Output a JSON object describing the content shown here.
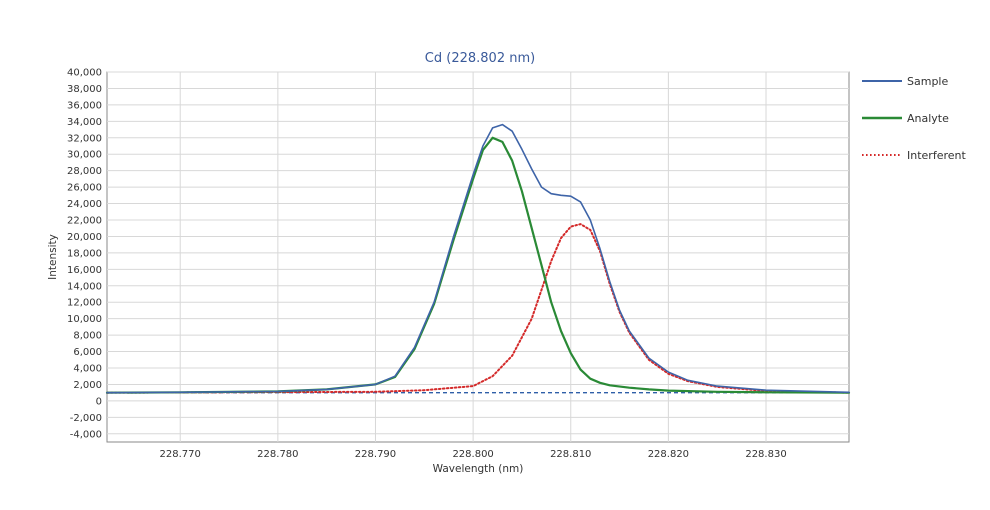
{
  "chart_data": {
    "type": "line",
    "title": "Cd (228.802 nm)",
    "xlabel": "Wavelength (nm)",
    "ylabel": "Intensity",
    "xlim": [
      228.7625,
      228.8385
    ],
    "ylim": [
      -5000,
      40000
    ],
    "x_ticks": [
      228.77,
      228.78,
      228.79,
      228.8,
      228.81,
      228.82,
      228.83
    ],
    "x_tick_labels": [
      "228.770",
      "228.780",
      "228.790",
      "228.800",
      "228.810",
      "228.820",
      "228.830"
    ],
    "y_ticks": [
      -4000,
      -2000,
      0,
      2000,
      4000,
      6000,
      8000,
      10000,
      12000,
      14000,
      16000,
      18000,
      20000,
      22000,
      24000,
      26000,
      28000,
      30000,
      32000,
      34000,
      36000,
      38000,
      40000
    ],
    "y_tick_labels": [
      "-4,000",
      "-2,000",
      "0",
      "2,000",
      "4,000",
      "6,000",
      "8,000",
      "10,000",
      "12,000",
      "14,000",
      "16,000",
      "18,000",
      "20,000",
      "22,000",
      "24,000",
      "26,000",
      "28,000",
      "30,000",
      "32,000",
      "34,000",
      "36,000",
      "38,000",
      "40,000"
    ],
    "grid": true,
    "legend_position": "right",
    "baseline": {
      "y": 1000,
      "color": "#2f5fa8",
      "style": "dashed"
    },
    "series": [
      {
        "name": "Sample",
        "color": "#3e64a8",
        "style": "solid",
        "x": [
          228.7625,
          228.77,
          228.78,
          228.785,
          228.79,
          228.792,
          228.794,
          228.796,
          228.798,
          228.8,
          228.801,
          228.802,
          228.803,
          228.804,
          228.805,
          228.806,
          228.807,
          228.808,
          228.809,
          228.81,
          228.811,
          228.812,
          228.813,
          228.814,
          228.815,
          228.816,
          228.818,
          228.82,
          228.822,
          228.825,
          228.83,
          228.8385
        ],
        "y": [
          1000,
          1050,
          1150,
          1400,
          2000,
          3000,
          6500,
          12000,
          20000,
          27500,
          31000,
          33200,
          33600,
          32800,
          30600,
          28200,
          26000,
          25200,
          25000,
          24900,
          24200,
          22000,
          18500,
          14500,
          11000,
          8500,
          5200,
          3500,
          2500,
          1800,
          1300,
          1050
        ]
      },
      {
        "name": "Analyte",
        "color": "#2a8a36",
        "style": "solid",
        "x": [
          228.7625,
          228.77,
          228.78,
          228.785,
          228.79,
          228.792,
          228.794,
          228.796,
          228.798,
          228.8,
          228.801,
          228.802,
          228.803,
          228.804,
          228.805,
          228.806,
          228.807,
          228.808,
          228.809,
          228.81,
          228.811,
          228.812,
          228.813,
          228.814,
          228.816,
          228.818,
          228.82,
          228.825,
          228.83,
          228.8385
        ],
        "y": [
          1000,
          1050,
          1150,
          1400,
          2000,
          2900,
          6300,
          11800,
          19600,
          27000,
          30500,
          32000,
          31500,
          29200,
          25500,
          21000,
          16500,
          12000,
          8500,
          5800,
          3800,
          2700,
          2200,
          1900,
          1600,
          1400,
          1250,
          1100,
          1050,
          1000
        ]
      },
      {
        "name": "Interferent",
        "color": "#d42a2a",
        "style": "dotted",
        "x": [
          228.7625,
          228.79,
          228.795,
          228.8,
          228.802,
          228.804,
          228.806,
          228.807,
          228.808,
          228.809,
          228.81,
          228.811,
          228.812,
          228.813,
          228.814,
          228.815,
          228.816,
          228.818,
          228.82,
          228.822,
          228.825,
          228.83,
          228.8385
        ],
        "y": [
          1000,
          1100,
          1300,
          1800,
          3000,
          5500,
          10000,
          13500,
          17000,
          19800,
          21200,
          21500,
          20800,
          18200,
          14200,
          10800,
          8300,
          5000,
          3300,
          2400,
          1700,
          1200,
          1000
        ]
      }
    ]
  }
}
